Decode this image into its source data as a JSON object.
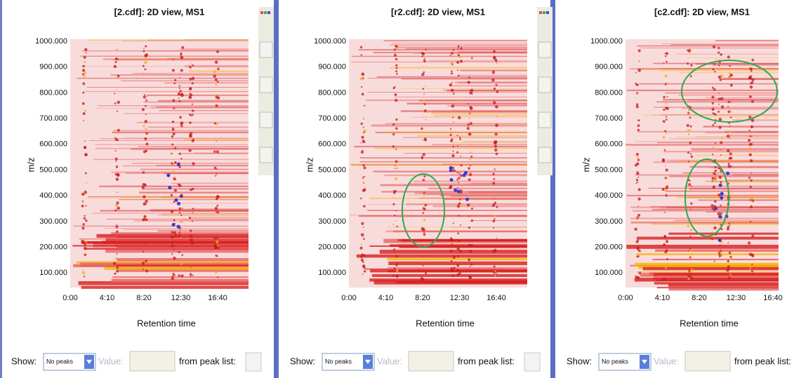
{
  "panels": [
    {
      "title": "[2.cdf]: 2D view, MS1",
      "y_label": "m/z",
      "y_ticks": [
        "1000.000",
        "900.000",
        "800.000",
        "700.000",
        "600.000",
        "500.000",
        "400.000",
        "300.000",
        "200.000",
        "100.000"
      ],
      "x_label": "Retention time",
      "x_ticks": [
        "0:00",
        "4:10",
        "8:20",
        "12:30",
        "16:40"
      ],
      "controls": {
        "show_label": "Show:",
        "show_value": "No peaks",
        "value_label": "Value:",
        "peak_list_label": "from peak list:"
      }
    },
    {
      "title": "[r2.cdf]: 2D view, MS1",
      "y_label": "m/z",
      "y_ticks": [
        "1000.000",
        "900.000",
        "800.000",
        "700.000",
        "600.000",
        "500.000",
        "400.000",
        "300.000",
        "200.000",
        "100.000"
      ],
      "x_label": "Retention time",
      "x_ticks": [
        "0:00",
        "4:10",
        "8:20",
        "12:30",
        "16:40"
      ],
      "controls": {
        "show_label": "Show:",
        "show_value": "No peaks",
        "value_label": "Value:",
        "peak_list_label": "from peak list:"
      }
    },
    {
      "title": "[c2.cdf]: 2D view, MS1",
      "y_label": "m/z",
      "y_ticks": [
        "1000.000",
        "900.000",
        "800.000",
        "700.000",
        "600.000",
        "500.000",
        "400.000",
        "300.000",
        "200.000",
        "100.000"
      ],
      "x_label": "Retention time",
      "x_ticks": [
        "0:00",
        "4:10",
        "8:20",
        "12:30",
        "16:40"
      ],
      "controls": {
        "show_label": "Show:",
        "show_value": "No peaks",
        "value_label": "Value:",
        "peak_list_label": "from peak list:"
      }
    }
  ]
}
